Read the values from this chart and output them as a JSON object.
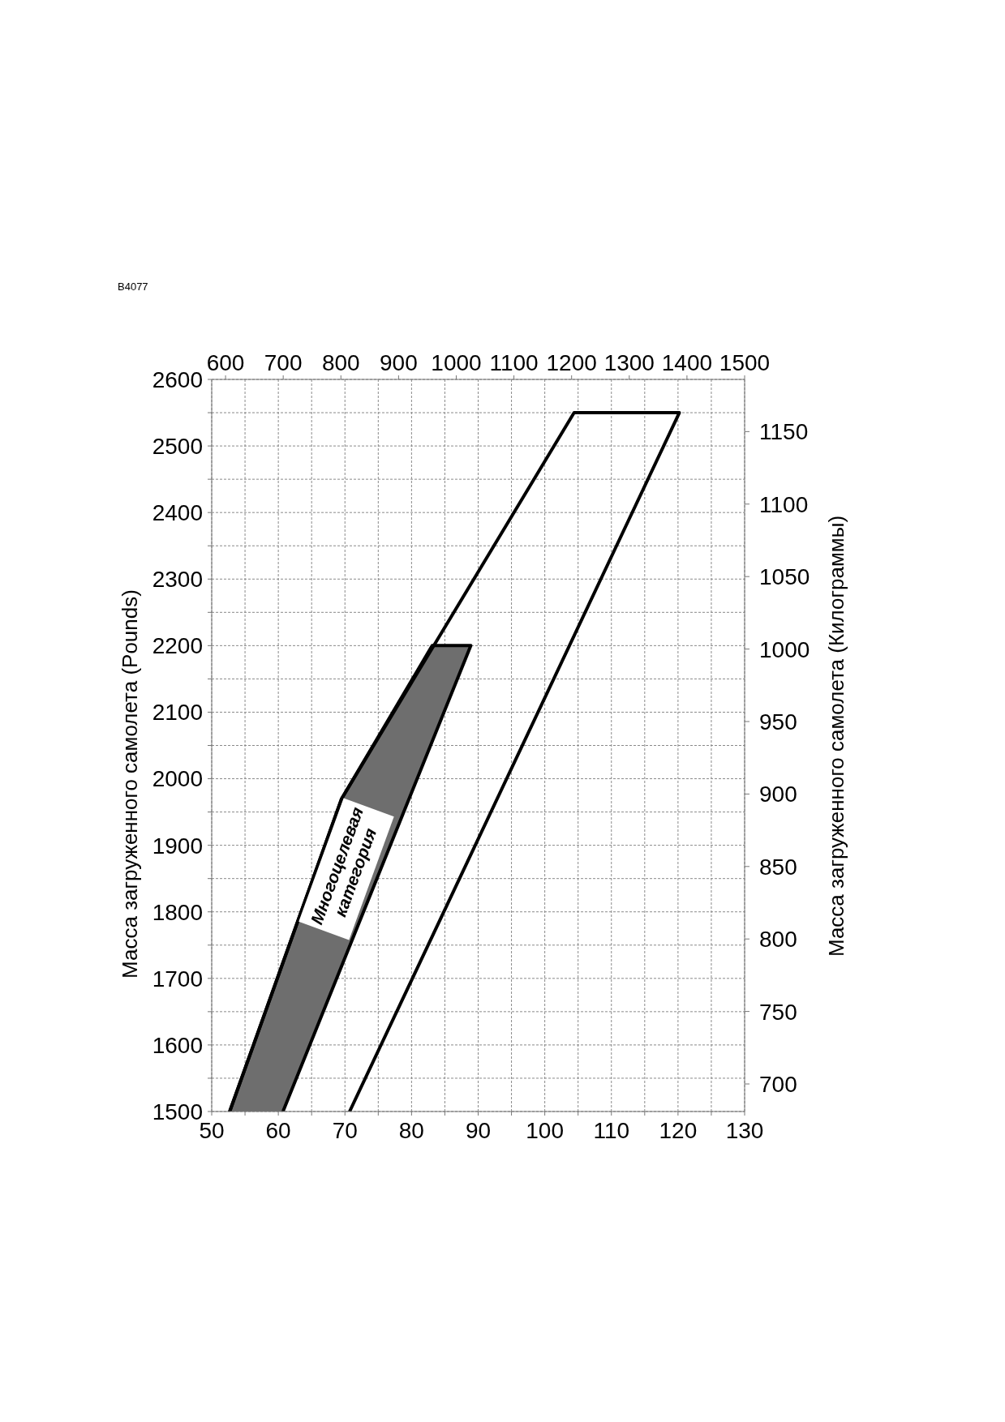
{
  "chart_data": {
    "type": "line",
    "annotations": [
      "B4077",
      "Многоцелевая категория"
    ],
    "ylabel": "Масса загруженного самолета (Pounds)",
    "y2label": "Масса загруженного самолета (Килограммы)",
    "xlim": [
      50,
      130
    ],
    "xticks": [
      50,
      {
        "value": 55,
        "label": null
      },
      60,
      {
        "value": 65,
        "label": null
      },
      70,
      {
        "value": 75,
        "label": null
      },
      80,
      {
        "value": 85,
        "label": null
      },
      90,
      {
        "value": 95,
        "label": null
      },
      100,
      {
        "value": 105,
        "label": null
      },
      110,
      {
        "value": 115,
        "label": null
      },
      120,
      {
        "value": 125,
        "label": null
      },
      130
    ],
    "x2lim": [
      576,
      1500
    ],
    "x2ticks": [
      600,
      700,
      800,
      900,
      1000,
      1100,
      1200,
      1300,
      1400,
      1500
    ],
    "ylim": [
      1500,
      2600
    ],
    "yticks": [
      1500,
      {
        "value": 1550,
        "label": null
      },
      1600,
      {
        "value": 1650,
        "label": null
      },
      1700,
      {
        "value": 1750,
        "label": null
      },
      1800,
      {
        "value": 1850,
        "label": null
      },
      1900,
      {
        "value": 1950,
        "label": null
      },
      2000,
      {
        "value": 2050,
        "label": null
      },
      2100,
      {
        "value": 2150,
        "label": null
      },
      2200,
      {
        "value": 2250,
        "label": null
      },
      2300,
      {
        "value": 2350,
        "label": null
      },
      2400,
      {
        "value": 2450,
        "label": null
      },
      2500,
      {
        "value": 2550,
        "label": null
      },
      2600
    ],
    "y2lim": [
      681,
      1186
    ],
    "y2ticks": [
      700,
      750,
      800,
      850,
      900,
      950,
      1000,
      1050,
      1100,
      1150
    ],
    "grid": true,
    "series": [
      {
        "type": "area",
        "color": "#6e6e6e",
        "x": [
          52.7,
          69.5,
          83.1,
          88.9,
          60.7
        ],
        "values": [
          1500,
          1970,
          2200,
          2200,
          1500
        ]
      },
      {
        "color": "#000000",
        "x": [
          52.7,
          69.5,
          104.4,
          120.2,
          70.7
        ],
        "values": [
          1500,
          1970,
          2550,
          2550,
          1500
        ]
      }
    ]
  }
}
